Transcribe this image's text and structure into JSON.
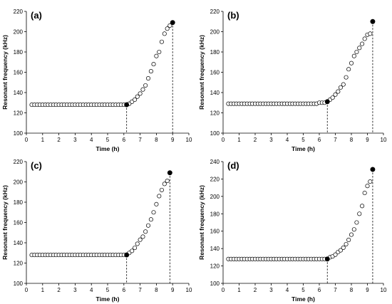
{
  "chart_data": [
    {
      "type": "scatter",
      "panel_label": "(a)",
      "xlabel": "Time (h)",
      "ylabel": "Resonant frequency (kHz)",
      "xlim": [
        0,
        10
      ],
      "ylim": [
        100,
        220
      ],
      "xticks": [
        "0",
        "1",
        "2",
        "3",
        "4",
        "5",
        "6",
        "7",
        "8",
        "9",
        "10"
      ],
      "yticks": [
        "100",
        "120",
        "140",
        "160",
        "180",
        "200",
        "220"
      ],
      "grid": false,
      "series": [
        {
          "marker": "open-circle",
          "x": [
            0.33,
            0.5,
            0.67,
            0.83,
            1.0,
            1.17,
            1.33,
            1.5,
            1.67,
            1.83,
            2.0,
            2.17,
            2.33,
            2.5,
            2.67,
            2.83,
            3.0,
            3.17,
            3.33,
            3.5,
            3.67,
            3.83,
            4.0,
            4.17,
            4.33,
            4.5,
            4.67,
            4.83,
            5.0,
            5.17,
            5.33,
            5.5,
            5.67,
            5.83,
            6.0,
            6.33,
            6.5,
            6.67,
            6.83,
            7.0,
            7.17,
            7.33,
            7.5,
            7.67,
            7.83,
            8.0,
            8.17,
            8.33,
            8.5,
            8.67,
            8.83
          ],
          "y": [
            128,
            128,
            128,
            128,
            128,
            128,
            128,
            128,
            128,
            128,
            128,
            128,
            128,
            128,
            128,
            128,
            128,
            128,
            128,
            128,
            128,
            128,
            128,
            128,
            128,
            128,
            128,
            128,
            128,
            128,
            128,
            128,
            128,
            128,
            128,
            129,
            131,
            133,
            136,
            139,
            143,
            147,
            154,
            161,
            168,
            176,
            180,
            190,
            198,
            203,
            206
          ]
        }
      ],
      "highlight_points": [
        {
          "x": 6.17,
          "y": 128
        },
        {
          "x": 9.0,
          "y": 209
        }
      ],
      "dashed_verticals": [
        6.17,
        9.0
      ]
    },
    {
      "type": "scatter",
      "panel_label": "(b)",
      "xlabel": "Time (h)",
      "ylabel": "Resonant frequency (kHz)",
      "xlim": [
        0,
        10
      ],
      "ylim": [
        100,
        220
      ],
      "xticks": [
        "0",
        "1",
        "2",
        "3",
        "4",
        "5",
        "6",
        "7",
        "8",
        "9",
        "10"
      ],
      "yticks": [
        "100",
        "120",
        "140",
        "160",
        "180",
        "200",
        "220"
      ],
      "grid": false,
      "series": [
        {
          "marker": "open-circle",
          "x": [
            0.33,
            0.5,
            0.67,
            0.83,
            1.0,
            1.17,
            1.33,
            1.5,
            1.67,
            1.83,
            2.0,
            2.17,
            2.33,
            2.5,
            2.67,
            2.83,
            3.0,
            3.17,
            3.33,
            3.5,
            3.67,
            3.83,
            4.0,
            4.17,
            4.33,
            4.5,
            4.67,
            4.83,
            5.0,
            5.17,
            5.33,
            5.5,
            5.67,
            5.83,
            6.0,
            6.17,
            6.33,
            6.67,
            6.83,
            7.0,
            7.17,
            7.33,
            7.5,
            7.67,
            7.83,
            8.0,
            8.17,
            8.33,
            8.5,
            8.67,
            8.83,
            9.0,
            9.17
          ],
          "y": [
            129,
            129,
            129,
            129,
            129,
            129,
            129,
            129,
            129,
            129,
            129,
            129,
            129,
            129,
            129,
            129,
            129,
            129,
            129,
            129,
            129,
            129,
            129,
            129,
            129,
            129,
            129,
            129,
            129,
            129,
            129,
            129,
            129,
            129,
            130,
            130,
            130,
            133,
            135,
            138,
            141,
            145,
            148,
            155,
            163,
            169,
            176,
            180,
            184,
            188,
            193,
            197,
            198
          ]
        }
      ],
      "highlight_points": [
        {
          "x": 6.5,
          "y": 131
        },
        {
          "x": 9.33,
          "y": 210
        }
      ],
      "dashed_verticals": [
        6.5,
        9.33
      ]
    },
    {
      "type": "scatter",
      "panel_label": "(c)",
      "xlabel": "Time (h)",
      "ylabel": "Resonant frequency (kHz)",
      "xlim": [
        0,
        10
      ],
      "ylim": [
        100,
        220
      ],
      "xticks": [
        "0",
        "1",
        "2",
        "3",
        "4",
        "5",
        "6",
        "7",
        "8",
        "9",
        "10"
      ],
      "yticks": [
        "100",
        "120",
        "140",
        "160",
        "180",
        "200",
        "220"
      ],
      "grid": false,
      "series": [
        {
          "marker": "open-circle",
          "x": [
            0.33,
            0.5,
            0.67,
            0.83,
            1.0,
            1.17,
            1.33,
            1.5,
            1.67,
            1.83,
            2.0,
            2.17,
            2.33,
            2.5,
            2.67,
            2.83,
            3.0,
            3.17,
            3.33,
            3.5,
            3.67,
            3.83,
            4.0,
            4.17,
            4.33,
            4.5,
            4.67,
            4.83,
            5.0,
            5.17,
            5.33,
            5.5,
            5.67,
            5.83,
            6.0,
            6.33,
            6.5,
            6.67,
            6.83,
            7.0,
            7.17,
            7.33,
            7.5,
            7.67,
            7.83,
            8.0,
            8.17,
            8.33,
            8.5,
            8.67
          ],
          "y": [
            128,
            128,
            128,
            128,
            128,
            128,
            128,
            128,
            128,
            128,
            128,
            128,
            128,
            128,
            128,
            128,
            128,
            128,
            128,
            128,
            128,
            128,
            128,
            128,
            128,
            128,
            128,
            128,
            128,
            128,
            128,
            128,
            128,
            128,
            128,
            130,
            132,
            135,
            139,
            143,
            146,
            151,
            157,
            163,
            170,
            178,
            186,
            192,
            198,
            201
          ]
        }
      ],
      "highlight_points": [
        {
          "x": 6.17,
          "y": 128
        },
        {
          "x": 8.83,
          "y": 209
        }
      ],
      "dashed_verticals": [
        6.17,
        8.83
      ]
    },
    {
      "type": "scatter",
      "panel_label": "(d)",
      "xlabel": "Time (h)",
      "ylabel": "Resonant frequency (kHz)",
      "xlim": [
        0,
        10
      ],
      "ylim": [
        100,
        240
      ],
      "xticks": [
        "0",
        "1",
        "2",
        "3",
        "4",
        "5",
        "6",
        "7",
        "8",
        "9",
        "10"
      ],
      "yticks": [
        "100",
        "120",
        "140",
        "160",
        "180",
        "200",
        "220",
        "240"
      ],
      "grid": false,
      "series": [
        {
          "marker": "open-circle",
          "x": [
            0.33,
            0.5,
            0.67,
            0.83,
            1.0,
            1.17,
            1.33,
            1.5,
            1.67,
            1.83,
            2.0,
            2.17,
            2.33,
            2.5,
            2.67,
            2.83,
            3.0,
            3.17,
            3.33,
            3.5,
            3.67,
            3.83,
            4.0,
            4.17,
            4.33,
            4.5,
            4.67,
            4.83,
            5.0,
            5.17,
            5.33,
            5.5,
            5.67,
            5.83,
            6.0,
            6.17,
            6.33,
            6.67,
            6.83,
            7.0,
            7.17,
            7.33,
            7.5,
            7.67,
            7.83,
            8.0,
            8.17,
            8.33,
            8.5,
            8.67,
            8.83,
            9.0,
            9.17
          ],
          "y": [
            128,
            128,
            128,
            128,
            128,
            128,
            128,
            128,
            128,
            128,
            128,
            128,
            128,
            128,
            128,
            128,
            128,
            128,
            128,
            128,
            128,
            128,
            128,
            128,
            128,
            128,
            128,
            128,
            128,
            128,
            128,
            128,
            128,
            128,
            128,
            128,
            128,
            130,
            131,
            133,
            136,
            138,
            141,
            145,
            150,
            156,
            162,
            170,
            180,
            189,
            204,
            212,
            217
          ]
        }
      ],
      "highlight_points": [
        {
          "x": 6.5,
          "y": 128
        },
        {
          "x": 9.33,
          "y": 231
        }
      ],
      "dashed_verticals": [
        6.5,
        9.33
      ]
    }
  ]
}
